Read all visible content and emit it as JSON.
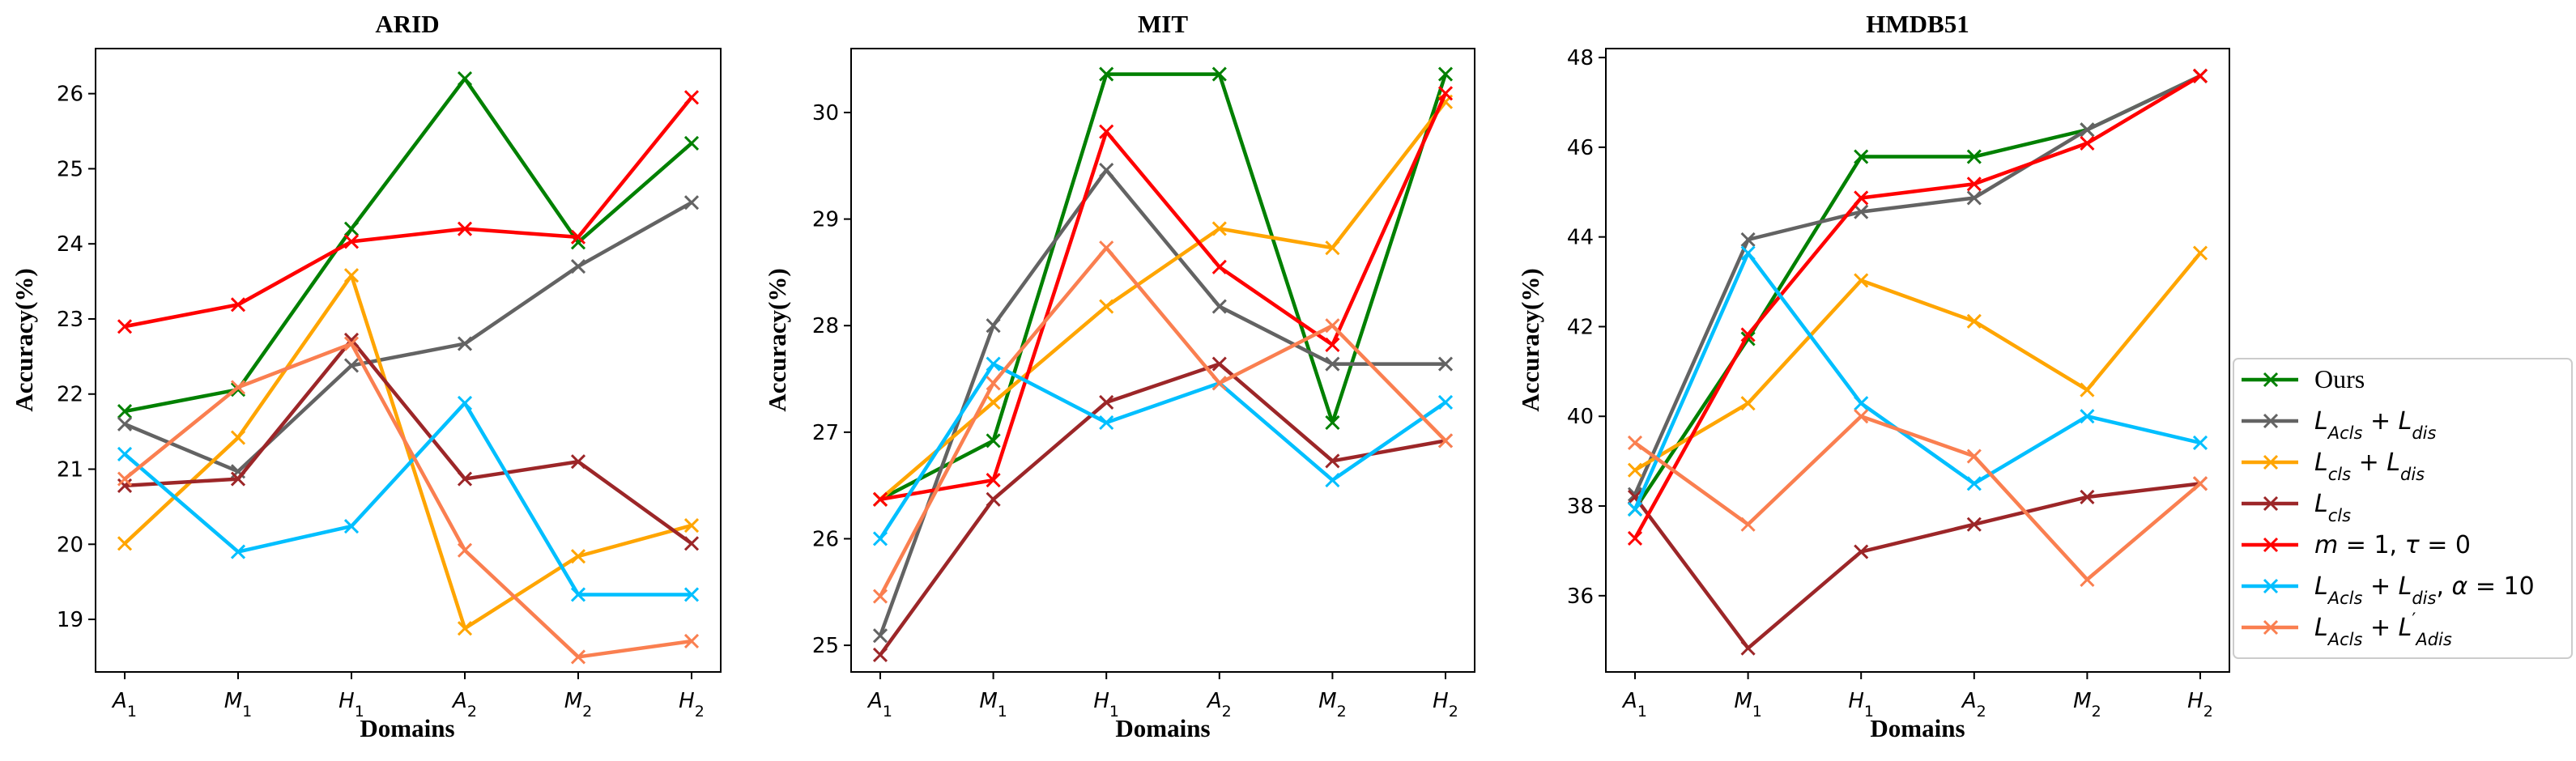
{
  "chart_data": {
    "type": "line",
    "legend_placement": "right",
    "series_meta": [
      {
        "name": "Ours",
        "color": "#008000"
      },
      {
        "name": "L_Acls + L_dis",
        "color": "#636363"
      },
      {
        "name": "L_cls + L_dis",
        "color": "#ffa500"
      },
      {
        "name": "L_cls",
        "color": "#9c2628"
      },
      {
        "name": "m = 1, τ = 0",
        "color": "#ff0000"
      },
      {
        "name": "L_Acls + L_dis, α = 10",
        "color": "#00bfff"
      },
      {
        "name": "L_Acls + L'_Adis",
        "color": "#fa7f50"
      }
    ],
    "charts": [
      {
        "title": "ARID",
        "xlabel": "Domains",
        "ylabel": "Accuracy(%)",
        "categories": [
          "A1",
          "M1",
          "H1",
          "A2",
          "M2",
          "H2"
        ],
        "ylim": [
          18.3,
          26.6
        ],
        "yticks": [
          19,
          20,
          21,
          22,
          23,
          24,
          25,
          26
        ],
        "series": [
          {
            "name": "Ours",
            "values": [
              21.77,
              22.06,
              24.2,
              26.2,
              24.02,
              25.34
            ]
          },
          {
            "name": "L_Acls + L_dis",
            "values": [
              21.6,
              20.97,
              22.38,
              22.67,
              23.7,
              24.55
            ]
          },
          {
            "name": "L_cls + L_dis",
            "values": [
              20.01,
              21.42,
              23.58,
              18.88,
              19.84,
              20.25
            ]
          },
          {
            "name": "L_cls",
            "values": [
              20.78,
              20.87,
              22.72,
              20.87,
              21.1,
              20.01
            ]
          },
          {
            "name": "m = 1, τ = 0",
            "values": [
              22.9,
              23.19,
              24.03,
              24.2,
              24.09,
              25.95
            ]
          },
          {
            "name": "L_Acls + L_dis, α = 10",
            "values": [
              21.2,
              19.9,
              20.24,
              21.88,
              19.33,
              19.33
            ]
          },
          {
            "name": "L_Acls + L'_Adis",
            "values": [
              20.87,
              22.09,
              22.67,
              19.92,
              18.5,
              18.71
            ]
          }
        ]
      },
      {
        "title": "MIT",
        "xlabel": "Domains",
        "ylabel": "Accuracy(%)",
        "categories": [
          "A1",
          "M1",
          "H1",
          "A2",
          "M2",
          "H2"
        ],
        "ylim": [
          24.75,
          30.6
        ],
        "yticks": [
          25,
          26,
          27,
          28,
          29,
          30
        ],
        "series": [
          {
            "name": "Ours",
            "values": [
              26.37,
              26.92,
              30.36,
              30.36,
              27.09,
              30.36
            ]
          },
          {
            "name": "L_Acls + L_dis",
            "values": [
              25.09,
              28.0,
              29.46,
              28.18,
              27.64,
              27.64
            ]
          },
          {
            "name": "L_cls + L_dis",
            "values": [
              26.37,
              27.28,
              28.18,
              28.91,
              28.73,
              30.1
            ]
          },
          {
            "name": "L_cls",
            "values": [
              24.91,
              26.37,
              27.28,
              27.64,
              26.73,
              26.92
            ]
          },
          {
            "name": "m = 1, τ = 0",
            "values": [
              26.37,
              26.55,
              29.82,
              28.55,
              27.82,
              30.18
            ]
          },
          {
            "name": "L_Acls + L_dis, α = 10",
            "values": [
              26.0,
              27.64,
              27.09,
              27.46,
              26.55,
              27.28
            ]
          },
          {
            "name": "L_Acls + L'_Adis",
            "values": [
              25.46,
              27.46,
              28.73,
              27.46,
              28.0,
              26.92
            ]
          }
        ]
      },
      {
        "title": "HMDB51",
        "xlabel": "Domains",
        "ylabel": "Accuracy(%)",
        "categories": [
          "A1",
          "M1",
          "H1",
          "A2",
          "M2",
          "H2"
        ],
        "ylim": [
          34.3,
          48.2
        ],
        "yticks": [
          36,
          38,
          40,
          42,
          44,
          46,
          48
        ],
        "series": [
          {
            "name": "Ours",
            "values": [
              37.93,
              41.73,
              45.79,
              45.79,
              46.39,
              47.59
            ]
          },
          {
            "name": "L_Acls + L_dis",
            "values": [
              38.26,
              43.94,
              44.56,
              44.87,
              46.39,
              47.59
            ]
          },
          {
            "name": "L_cls + L_dis",
            "values": [
              38.8,
              40.29,
              43.03,
              42.12,
              40.59,
              43.64
            ]
          },
          {
            "name": "L_cls",
            "values": [
              38.2,
              34.83,
              36.98,
              37.59,
              38.2,
              38.5
            ]
          },
          {
            "name": "m = 1, τ = 0",
            "values": [
              37.28,
              41.82,
              44.87,
              45.18,
              46.09,
              47.59
            ]
          },
          {
            "name": "L_Acls + L_dis, α = 10",
            "values": [
              37.93,
              43.64,
              40.29,
              38.5,
              40.0,
              39.41
            ]
          },
          {
            "name": "L_Acls + L'_Adis",
            "values": [
              39.41,
              37.59,
              40.0,
              39.11,
              36.36,
              38.5
            ]
          }
        ]
      }
    ]
  }
}
